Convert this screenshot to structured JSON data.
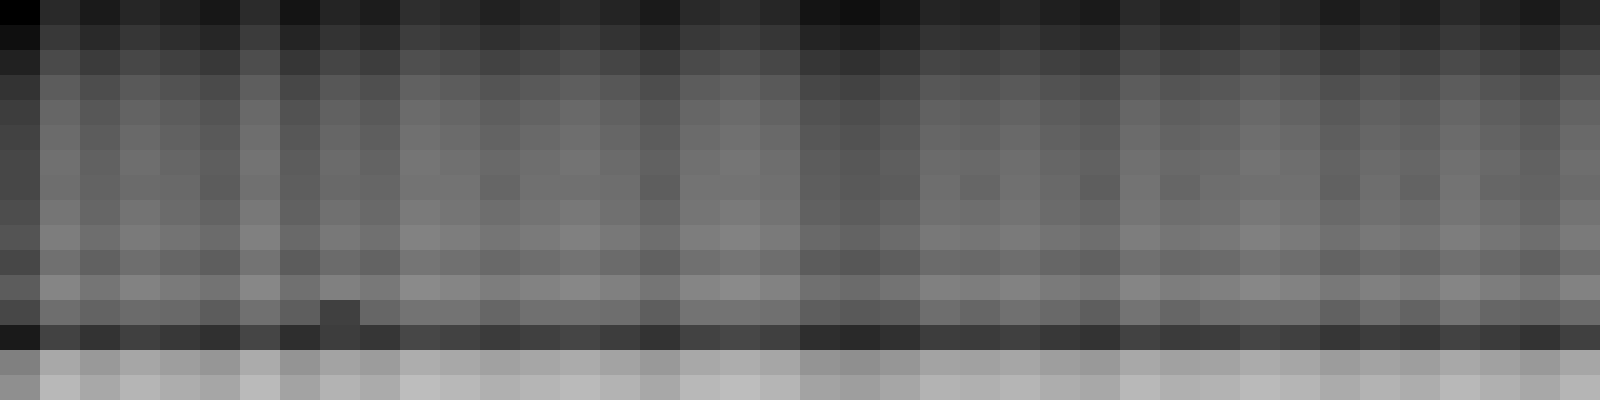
{
  "chart_data": {
    "type": "heatmap",
    "tick_labels": false,
    "color": "#ffffff",
    "zlim": [
      0,
      100
    ],
    "cells": [
      [
        0,
        16,
        10,
        15,
        12,
        9,
        17,
        8,
        14,
        11,
        18,
        16,
        13,
        15,
        17,
        14,
        10,
        16,
        18,
        15,
        8,
        6,
        9,
        14,
        13,
        15,
        12,
        10,
        16,
        13,
        14,
        17,
        15,
        11,
        14,
        12,
        16,
        13,
        10,
        15
      ],
      [
        6,
        22,
        16,
        21,
        18,
        15,
        23,
        14,
        20,
        17,
        24,
        22,
        19,
        21,
        23,
        20,
        16,
        22,
        24,
        21,
        14,
        12,
        15,
        20,
        19,
        21,
        18,
        16,
        22,
        19,
        20,
        23,
        21,
        17,
        20,
        18,
        22,
        19,
        16,
        21
      ],
      [
        13,
        29,
        23,
        28,
        25,
        22,
        30,
        21,
        27,
        24,
        31,
        29,
        26,
        28,
        30,
        27,
        23,
        29,
        31,
        28,
        21,
        19,
        22,
        27,
        26,
        28,
        25,
        23,
        29,
        26,
        27,
        30,
        28,
        24,
        27,
        25,
        29,
        26,
        23,
        28
      ],
      [
        20,
        36,
        30,
        35,
        32,
        29,
        37,
        28,
        34,
        31,
        38,
        36,
        33,
        35,
        37,
        34,
        30,
        36,
        38,
        35,
        28,
        26,
        29,
        34,
        33,
        35,
        32,
        30,
        36,
        33,
        34,
        37,
        35,
        31,
        34,
        32,
        36,
        33,
        30,
        35
      ],
      [
        24,
        40,
        34,
        39,
        36,
        33,
        41,
        32,
        38,
        35,
        42,
        40,
        37,
        39,
        41,
        38,
        34,
        40,
        42,
        39,
        32,
        30,
        33,
        38,
        37,
        39,
        36,
        34,
        40,
        37,
        38,
        41,
        39,
        35,
        38,
        36,
        40,
        37,
        34,
        39
      ],
      [
        26,
        42,
        36,
        41,
        38,
        35,
        43,
        34,
        40,
        37,
        44,
        42,
        39,
        41,
        43,
        40,
        36,
        42,
        44,
        41,
        34,
        32,
        35,
        40,
        39,
        41,
        38,
        36,
        42,
        39,
        40,
        43,
        41,
        37,
        40,
        38,
        42,
        39,
        36,
        41
      ],
      [
        28,
        44,
        38,
        43,
        40,
        37,
        45,
        36,
        42,
        39,
        46,
        44,
        41,
        43,
        45,
        42,
        38,
        44,
        46,
        43,
        36,
        34,
        37,
        42,
        41,
        43,
        40,
        38,
        44,
        41,
        42,
        45,
        43,
        39,
        42,
        40,
        44,
        41,
        38,
        43
      ],
      [
        28,
        43,
        39,
        42,
        41,
        36,
        44,
        37,
        41,
        40,
        45,
        45,
        40,
        44,
        44,
        43,
        37,
        45,
        45,
        44,
        37,
        35,
        36,
        43,
        40,
        44,
        41,
        37,
        45,
        40,
        43,
        44,
        44,
        38,
        43,
        39,
        45,
        40,
        39,
        42
      ],
      [
        30,
        46,
        40,
        45,
        42,
        39,
        47,
        38,
        44,
        41,
        48,
        46,
        43,
        45,
        47,
        44,
        40,
        46,
        48,
        45,
        38,
        36,
        39,
        44,
        43,
        45,
        42,
        40,
        46,
        43,
        44,
        47,
        45,
        41,
        44,
        42,
        46,
        43,
        40,
        45
      ],
      [
        33,
        49,
        43,
        48,
        45,
        42,
        50,
        41,
        47,
        44,
        51,
        49,
        46,
        48,
        50,
        47,
        43,
        49,
        51,
        48,
        41,
        39,
        42,
        47,
        46,
        48,
        45,
        43,
        49,
        46,
        47,
        50,
        48,
        44,
        47,
        45,
        49,
        46,
        43,
        48
      ],
      [
        28,
        44,
        38,
        43,
        40,
        37,
        45,
        36,
        42,
        39,
        46,
        44,
        41,
        43,
        45,
        42,
        38,
        44,
        46,
        43,
        36,
        34,
        37,
        42,
        41,
        43,
        40,
        38,
        44,
        41,
        42,
        45,
        43,
        39,
        42,
        40,
        44,
        41,
        38,
        43
      ],
      [
        36,
        52,
        46,
        51,
        48,
        45,
        53,
        44,
        50,
        47,
        54,
        52,
        49,
        51,
        53,
        50,
        46,
        52,
        54,
        51,
        44,
        42,
        45,
        50,
        49,
        51,
        48,
        46,
        52,
        49,
        50,
        53,
        51,
        47,
        50,
        48,
        52,
        49,
        46,
        51
      ],
      [
        28,
        43,
        39,
        42,
        41,
        36,
        44,
        37,
        25,
        40,
        45,
        45,
        40,
        44,
        44,
        43,
        37,
        45,
        45,
        44,
        37,
        35,
        36,
        43,
        40,
        44,
        41,
        37,
        45,
        40,
        43,
        44,
        44,
        38,
        43,
        39,
        45,
        40,
        39,
        42
      ],
      [
        10,
        26,
        20,
        25,
        22,
        19,
        27,
        18,
        24,
        21,
        28,
        26,
        23,
        25,
        27,
        24,
        20,
        26,
        28,
        25,
        18,
        16,
        19,
        24,
        23,
        25,
        22,
        20,
        26,
        23,
        24,
        27,
        25,
        21,
        24,
        22,
        26,
        23,
        20,
        25
      ],
      [
        50,
        66,
        60,
        65,
        62,
        59,
        67,
        58,
        64,
        61,
        68,
        66,
        63,
        65,
        67,
        64,
        60,
        66,
        68,
        65,
        58,
        56,
        59,
        64,
        63,
        65,
        62,
        60,
        66,
        63,
        64,
        67,
        65,
        61,
        64,
        62,
        66,
        63,
        60,
        65
      ],
      [
        56,
        72,
        66,
        71,
        68,
        65,
        73,
        64,
        70,
        67,
        74,
        72,
        69,
        71,
        73,
        70,
        66,
        72,
        74,
        71,
        64,
        62,
        65,
        70,
        69,
        71,
        68,
        66,
        72,
        69,
        70,
        73,
        71,
        67,
        70,
        68,
        72,
        69,
        66,
        71
      ]
    ]
  }
}
